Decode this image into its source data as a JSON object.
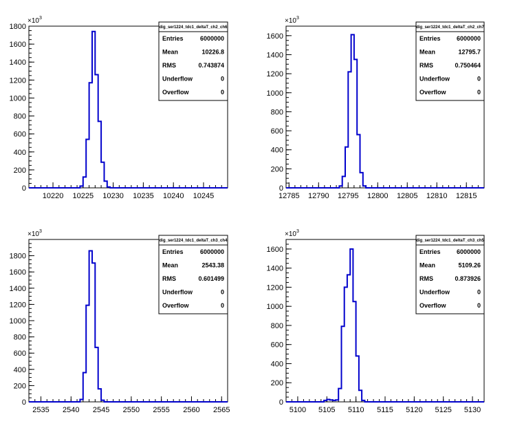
{
  "chart_data": [
    {
      "type": "histogram",
      "title": "dig_ser1224_tdc1_deltaT_ch2_ch6",
      "y_multiplier": "×10",
      "y_multiplier_exp": "3",
      "xlim": [
        10216,
        10249
      ],
      "ylim": [
        0,
        1800
      ],
      "x_ticks": [
        10220,
        10225,
        10230,
        10235,
        10240,
        10245
      ],
      "y_ticks": [
        0,
        200,
        400,
        600,
        800,
        1000,
        1200,
        1400,
        1600,
        1800
      ],
      "bin_width": 0.5,
      "bins": [
        [
          10224.5,
          20
        ],
        [
          10225.0,
          120
        ],
        [
          10225.5,
          540
        ],
        [
          10226.0,
          1170
        ],
        [
          10226.5,
          1740
        ],
        [
          10227.0,
          1260
        ],
        [
          10227.5,
          740
        ],
        [
          10228.0,
          285
        ],
        [
          10228.5,
          75
        ],
        [
          10229.0,
          10
        ]
      ],
      "stats": {
        "title": "dig_ser1224_tdc1_deltaT_ch2_ch6",
        "rows": [
          {
            "label": "Entries",
            "value": "6000000"
          },
          {
            "label": "Mean",
            "value": "10226.8"
          },
          {
            "label": "RMS",
            "value": "0.743874"
          },
          {
            "label": "Underflow",
            "value": "0"
          },
          {
            "label": "Overflow",
            "value": "0"
          }
        ]
      }
    },
    {
      "type": "histogram",
      "title": "dig_ser1224_tdc1_deltaT_ch2_ch7",
      "y_multiplier": "×10",
      "y_multiplier_exp": "3",
      "xlim": [
        12784.5,
        12818
      ],
      "ylim": [
        0,
        1700
      ],
      "x_ticks": [
        12785,
        12790,
        12795,
        12800,
        12805,
        12810,
        12815
      ],
      "y_ticks": [
        0,
        200,
        400,
        600,
        800,
        1000,
        1200,
        1400,
        1600
      ],
      "bin_width": 0.5,
      "bins": [
        [
          12793.5,
          20
        ],
        [
          12794.0,
          120
        ],
        [
          12794.5,
          430
        ],
        [
          12795.0,
          1220
        ],
        [
          12795.5,
          1610
        ],
        [
          12796.0,
          1350
        ],
        [
          12796.5,
          560
        ],
        [
          12797.0,
          160
        ],
        [
          12797.5,
          20
        ]
      ],
      "stats": {
        "title": "dig_ser1224_tdc1_deltaT_ch2_ch7",
        "rows": [
          {
            "label": "Entries",
            "value": "6000000"
          },
          {
            "label": "Mean",
            "value": "12795.7"
          },
          {
            "label": "RMS",
            "value": "0.750464"
          },
          {
            "label": "Underflow",
            "value": "0"
          },
          {
            "label": "Overflow",
            "value": "0"
          }
        ]
      }
    },
    {
      "type": "histogram",
      "title": "dig_ser1224_tdc1_deltaT_ch3_ch4",
      "y_multiplier": "×10",
      "y_multiplier_exp": "3",
      "xlim": [
        2533,
        2566
      ],
      "ylim": [
        0,
        2000
      ],
      "x_ticks": [
        2535,
        2540,
        2545,
        2550,
        2555,
        2560,
        2565
      ],
      "y_ticks": [
        0,
        200,
        400,
        600,
        800,
        1000,
        1200,
        1400,
        1600,
        1800
      ],
      "bin_width": 0.5,
      "bins": [
        [
          2541.5,
          30
        ],
        [
          2542.0,
          360
        ],
        [
          2542.5,
          1190
        ],
        [
          2543.0,
          1860
        ],
        [
          2543.5,
          1710
        ],
        [
          2544.0,
          670
        ],
        [
          2544.5,
          160
        ],
        [
          2545.0,
          20
        ]
      ],
      "stats": {
        "title": "dig_ser1224_tdc1_deltaT_ch3_ch4",
        "rows": [
          {
            "label": "Entries",
            "value": "6000000"
          },
          {
            "label": "Mean",
            "value": "2543.38"
          },
          {
            "label": "RMS",
            "value": "0.601499"
          },
          {
            "label": "Underflow",
            "value": "0"
          },
          {
            "label": "Overflow",
            "value": "0"
          }
        ]
      }
    },
    {
      "type": "histogram",
      "title": "dig_ser1224_tdc1_deltaT_ch3_ch5",
      "y_multiplier": "×10",
      "y_multiplier_exp": "3",
      "xlim": [
        5098,
        5132
      ],
      "ylim": [
        0,
        1700
      ],
      "x_ticks": [
        5100,
        5105,
        5110,
        5115,
        5120,
        5125,
        5130
      ],
      "y_ticks": [
        0,
        200,
        400,
        600,
        800,
        1000,
        1200,
        1400,
        1600
      ],
      "bin_width": 0.5,
      "bins": [
        [
          5104.5,
          15
        ],
        [
          5105.0,
          25
        ],
        [
          5105.5,
          20
        ],
        [
          5106.0,
          15
        ],
        [
          5106.5,
          20
        ],
        [
          5107.0,
          140
        ],
        [
          5107.5,
          790
        ],
        [
          5108.0,
          1200
        ],
        [
          5108.5,
          1330
        ],
        [
          5109.0,
          1600
        ],
        [
          5109.5,
          1050
        ],
        [
          5110.0,
          480
        ],
        [
          5110.5,
          120
        ],
        [
          5111.0,
          15
        ]
      ],
      "stats": {
        "title": "dig_ser1224_tdc1_deltaT_ch3_ch5",
        "rows": [
          {
            "label": "Entries",
            "value": "6000000"
          },
          {
            "label": "Mean",
            "value": "5109.26"
          },
          {
            "label": "RMS",
            "value": "0.873926"
          },
          {
            "label": "Underflow",
            "value": "0"
          },
          {
            "label": "Overflow",
            "value": "0"
          }
        ]
      }
    }
  ],
  "colors": {
    "histogram_line": "#0000cc",
    "axis": "#000000",
    "background": "#ffffff"
  }
}
